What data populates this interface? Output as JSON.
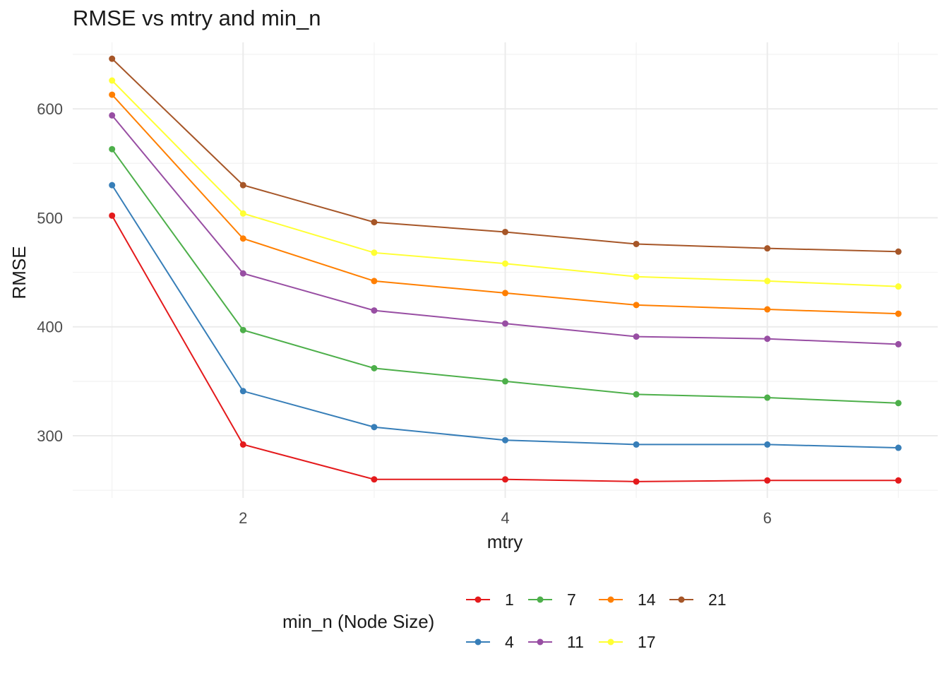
{
  "chart_data": {
    "type": "line",
    "title": "RMSE vs mtry and min_n",
    "xlabel": "mtry",
    "ylabel": "RMSE",
    "x": [
      1,
      2,
      3,
      4,
      5,
      6,
      7
    ],
    "xticks": [
      2,
      4,
      6
    ],
    "yticks": [
      300,
      400,
      500,
      600
    ],
    "xlim": [
      0.7,
      7.3
    ],
    "ylim": [
      243,
      661
    ],
    "grid": true,
    "legend": {
      "title": "min_n (Node Size)",
      "placement": "bottom",
      "rows": [
        [
          "1",
          "7",
          "14",
          "21"
        ],
        [
          "4",
          "11",
          "17"
        ]
      ]
    },
    "series": [
      {
        "name": "1",
        "color": "#E41A1C",
        "values": [
          502,
          292,
          260,
          260,
          258,
          259,
          259
        ]
      },
      {
        "name": "4",
        "color": "#377EB8",
        "values": [
          530,
          341,
          308,
          296,
          292,
          292,
          289
        ]
      },
      {
        "name": "7",
        "color": "#4DAF4A",
        "values": [
          563,
          397,
          362,
          350,
          338,
          335,
          330
        ]
      },
      {
        "name": "11",
        "color": "#984EA3",
        "values": [
          594,
          449,
          415,
          403,
          391,
          389,
          384
        ]
      },
      {
        "name": "14",
        "color": "#FF7F00",
        "values": [
          613,
          481,
          442,
          431,
          420,
          416,
          412
        ]
      },
      {
        "name": "17",
        "color": "#FFFF33",
        "values": [
          626,
          504,
          468,
          458,
          446,
          442,
          437
        ]
      },
      {
        "name": "21",
        "color": "#A65628",
        "values": [
          646,
          530,
          496,
          487,
          476,
          472,
          469
        ]
      }
    ]
  }
}
